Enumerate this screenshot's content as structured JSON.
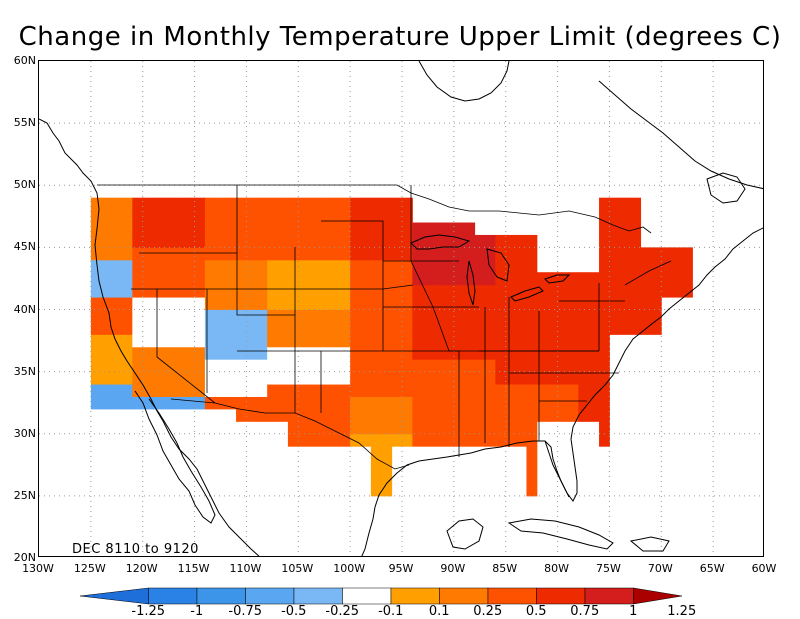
{
  "title": "Change in Monthly Temperature Upper Limit (degrees C)",
  "period_label": "DEC 8110 to 9120",
  "lat_labels": [
    "60N",
    "55N",
    "50N",
    "45N",
    "40N",
    "35N",
    "30N",
    "25N",
    "20N"
  ],
  "lon_labels": [
    "130W",
    "125W",
    "120W",
    "115W",
    "110W",
    "105W",
    "100W",
    "95W",
    "90W",
    "85W",
    "80W",
    "75W",
    "70W",
    "65W",
    "60W"
  ],
  "colorbar": {
    "labels": [
      "-1.25",
      "-1",
      "-0.75",
      "-0.5",
      "-0.25",
      "-0.1",
      "0.1",
      "0.25",
      "0.5",
      "0.75",
      "1",
      "1.25"
    ],
    "colors": [
      "#1e6fd9",
      "#2a82e6",
      "#3d95ea",
      "#5aa6f0",
      "#7ab8f5",
      "#ffffff",
      "#ffa000",
      "#ff7a00",
      "#ff5200",
      "#ee2a00",
      "#d41e1e",
      "#aa0000"
    ]
  },
  "map": {
    "projection": "equirectangular",
    "lon_range": [
      -130,
      -60
    ],
    "lat_range": [
      20,
      60
    ],
    "grid_step_lon": 5,
    "grid_step_lat": 5,
    "cell_size_deg": 1
  }
}
